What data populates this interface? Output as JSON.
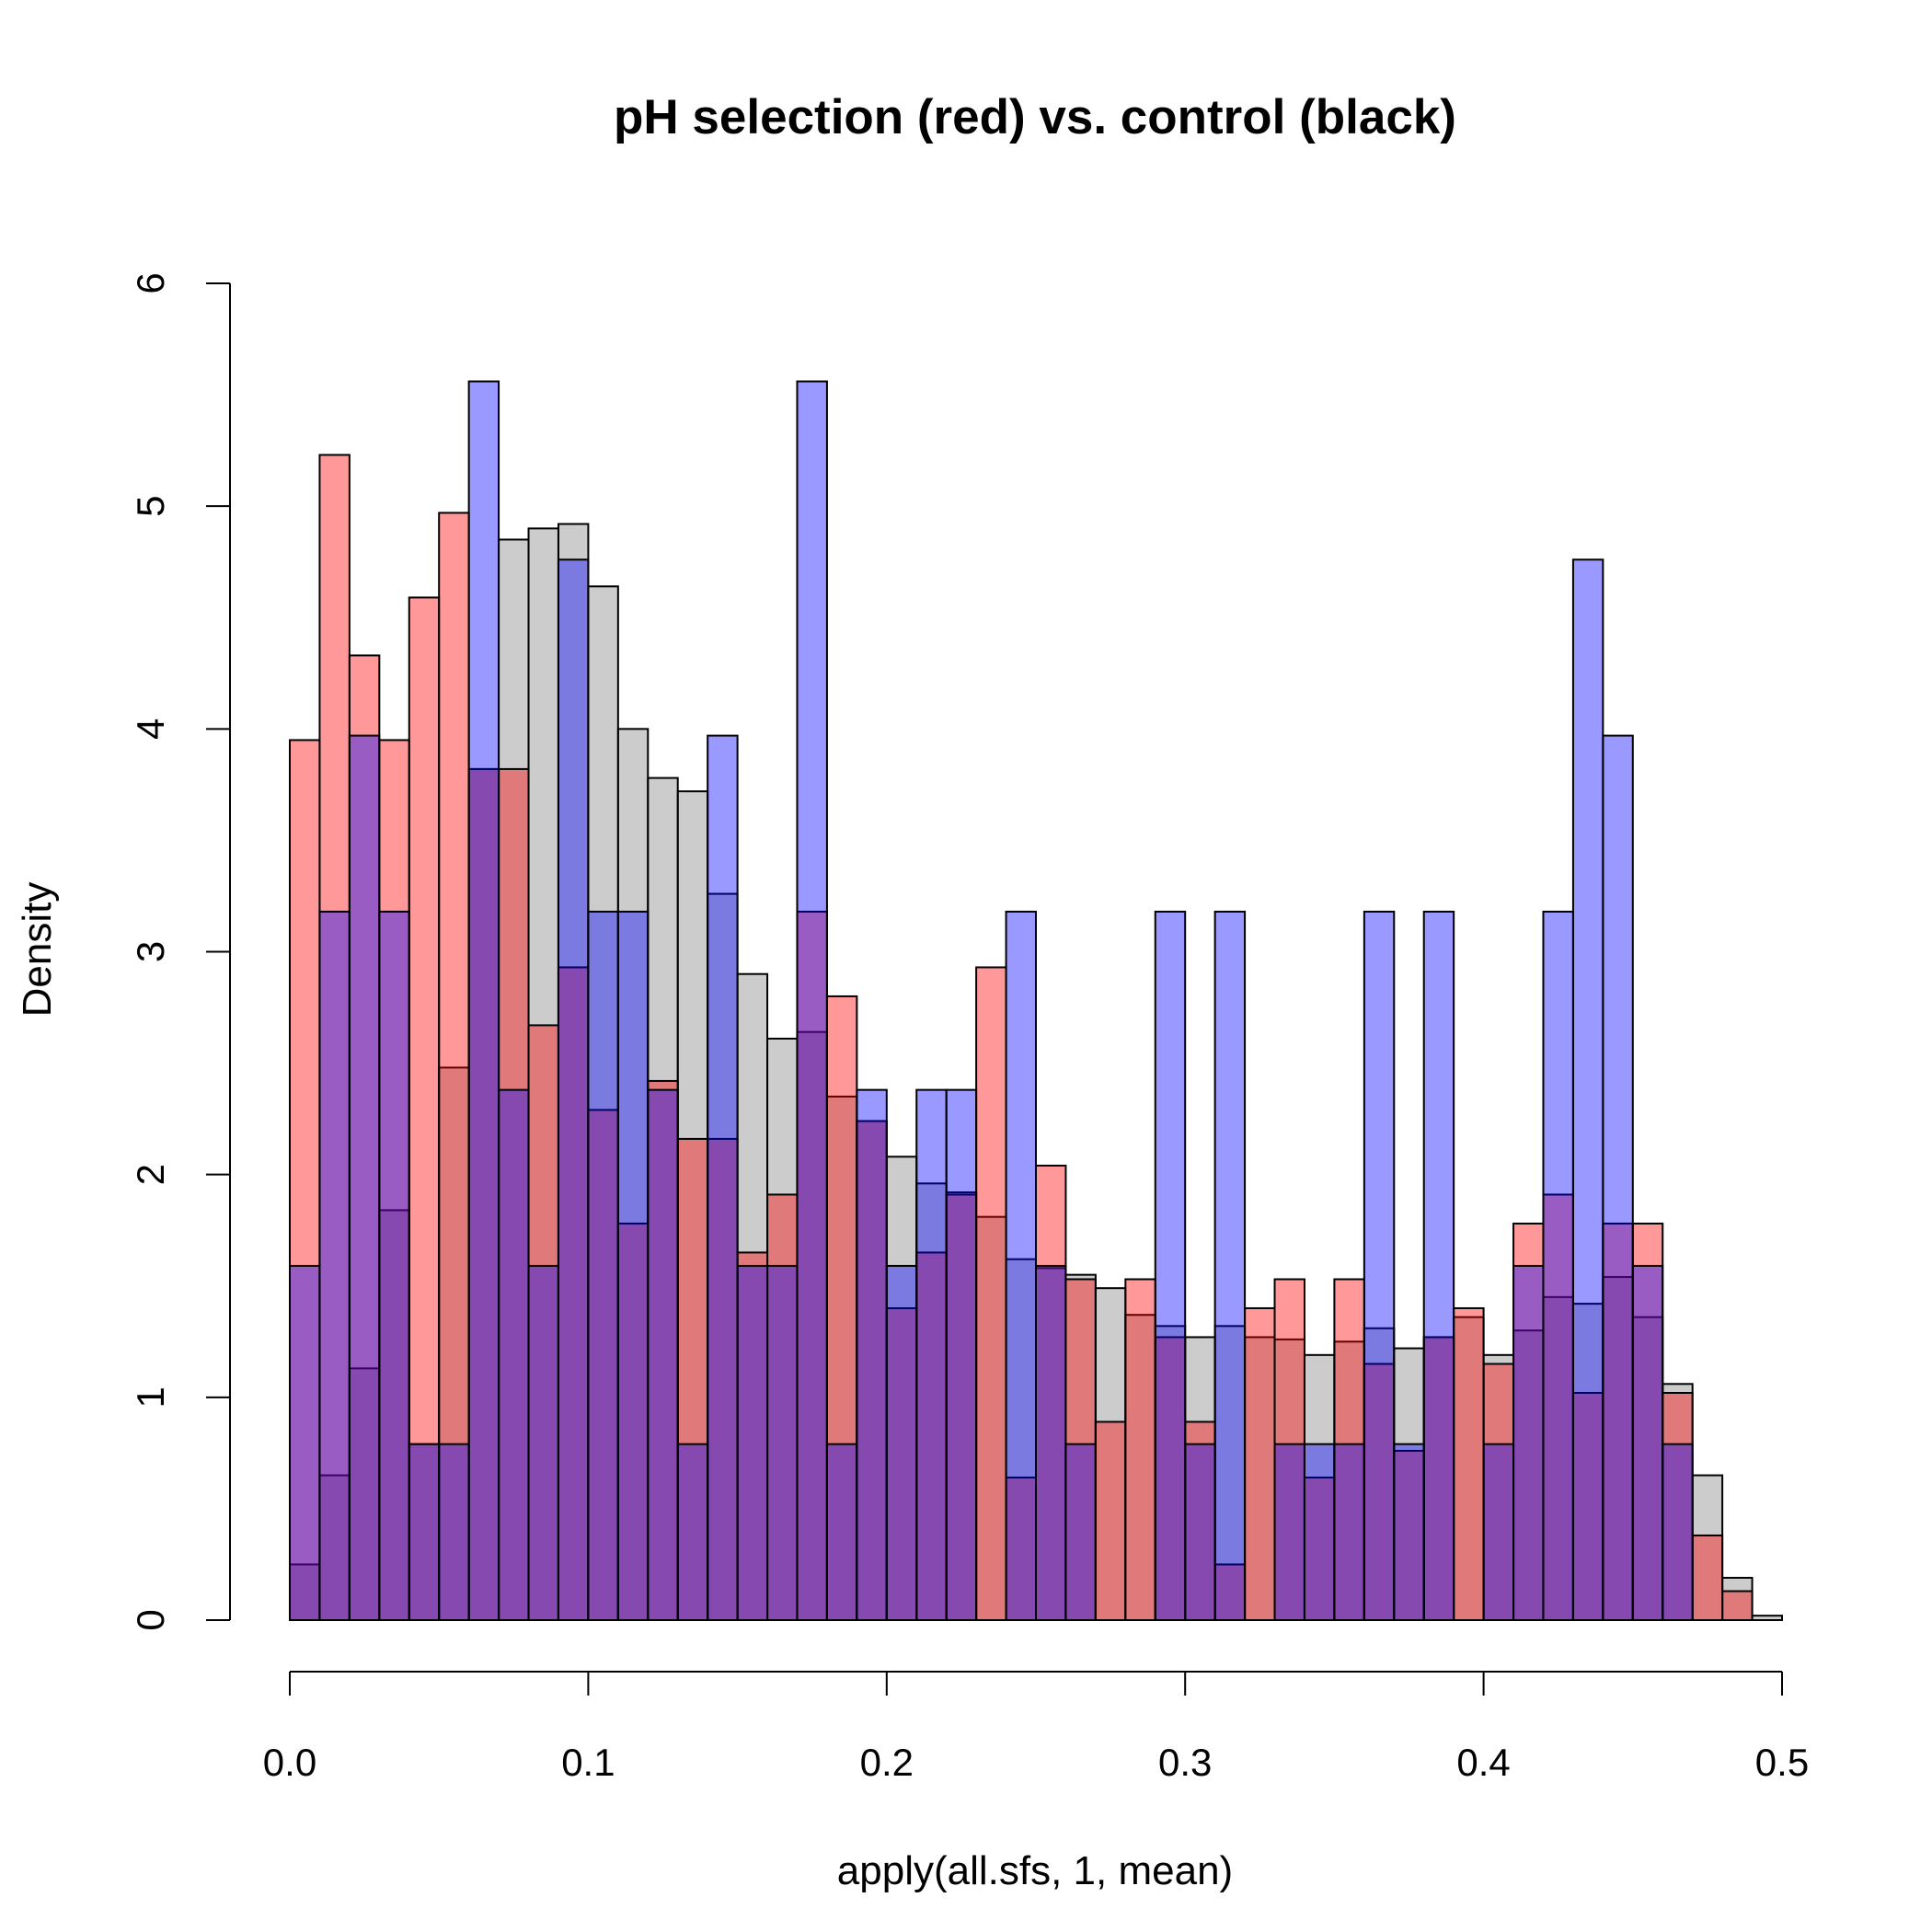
{
  "chart_data": {
    "type": "bar",
    "title": "pH selection (red) vs. control (black)",
    "xlabel": "apply(all.sfs, 1, mean)",
    "ylabel": "Density",
    "xlim": [
      0,
      0.5
    ],
    "ylim": [
      0,
      6
    ],
    "xticks": [
      "0.0",
      "0.1",
      "0.2",
      "0.3",
      "0.4",
      "0.5"
    ],
    "yticks": [
      "0",
      "1",
      "2",
      "3",
      "4",
      "5",
      "6"
    ],
    "bin_width": 0.01,
    "x": [
      0.0,
      0.01,
      0.02,
      0.03,
      0.04,
      0.05,
      0.06,
      0.07,
      0.08,
      0.09,
      0.1,
      0.11,
      0.12,
      0.13,
      0.14,
      0.15,
      0.16,
      0.17,
      0.18,
      0.19,
      0.2,
      0.21,
      0.22,
      0.23,
      0.24,
      0.25,
      0.26,
      0.27,
      0.28,
      0.29,
      0.3,
      0.31,
      0.32,
      0.33,
      0.34,
      0.35,
      0.36,
      0.37,
      0.38,
      0.39,
      0.4,
      0.41,
      0.42,
      0.43,
      0.44,
      0.45,
      0.46,
      0.47,
      0.48,
      0.49
    ],
    "series": [
      {
        "color": "#808080",
        "values": [
          0.25,
          0.65,
          1.13,
          1.84,
          0.79,
          2.48,
          3.82,
          4.85,
          4.9,
          4.92,
          4.64,
          4.0,
          3.78,
          3.72,
          3.26,
          2.9,
          2.61,
          2.64,
          2.35,
          2.24,
          2.08,
          1.96,
          1.92,
          1.81,
          1.62,
          1.58,
          1.55,
          1.49,
          1.37,
          1.32,
          1.27,
          1.32,
          1.27,
          1.26,
          1.19,
          1.25,
          1.31,
          1.22,
          1.27,
          1.36,
          1.19,
          1.3,
          1.45,
          1.42,
          1.54,
          1.36,
          1.06,
          0.65,
          0.19,
          0.02
        ]
      },
      {
        "color": "#ff0000",
        "values": [
          3.95,
          5.23,
          4.33,
          3.95,
          4.59,
          4.97,
          3.82,
          3.82,
          2.67,
          2.93,
          2.29,
          1.78,
          2.42,
          2.16,
          2.16,
          1.65,
          1.91,
          3.18,
          2.8,
          2.24,
          1.4,
          1.65,
          1.91,
          2.93,
          0.64,
          2.04,
          1.53,
          0.89,
          1.53,
          1.27,
          0.89,
          0.25,
          1.4,
          1.53,
          0.64,
          1.53,
          1.15,
          0.76,
          1.27,
          1.4,
          1.15,
          1.78,
          1.91,
          1.02,
          1.78,
          1.78,
          1.02,
          0.38,
          0.13,
          0.0
        ]
      },
      {
        "color": "#0000ff",
        "values": [
          1.59,
          3.18,
          3.97,
          3.18,
          0.79,
          0.79,
          5.56,
          2.38,
          1.59,
          4.76,
          3.18,
          3.18,
          2.38,
          0.79,
          3.97,
          1.59,
          1.59,
          5.56,
          0.79,
          2.38,
          1.59,
          2.38,
          2.38,
          0.0,
          3.18,
          1.59,
          0.79,
          0.0,
          0.0,
          3.18,
          0.79,
          3.18,
          0.0,
          0.79,
          0.79,
          0.79,
          3.18,
          0.79,
          3.18,
          0.0,
          0.79,
          1.59,
          3.18,
          4.76,
          3.97,
          1.59,
          0.79,
          0.0,
          0.0,
          0.0
        ]
      }
    ]
  }
}
